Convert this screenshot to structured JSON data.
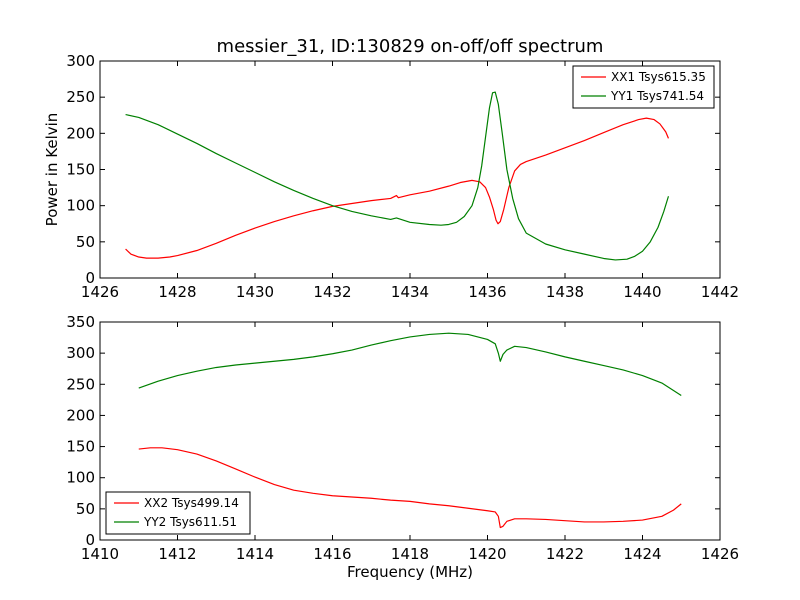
{
  "figure": {
    "title": "messier_31, ID:130829 on-off/off spectrum"
  },
  "chart_data": [
    {
      "type": "line",
      "title": "messier_31, ID:130829 on-off/off spectrum",
      "xlabel": "",
      "ylabel": "Power in Kelvin",
      "xlim": [
        1426,
        1442
      ],
      "ylim": [
        0,
        300
      ],
      "xticks": [
        "1426",
        "1428",
        "1430",
        "1432",
        "1434",
        "1436",
        "1438",
        "1440",
        "1442"
      ],
      "yticks": [
        "0",
        "50",
        "100",
        "150",
        "200",
        "250",
        "300"
      ],
      "legend_position": "top-right",
      "grid": false,
      "series": [
        {
          "name": "XX1 Tsys615.35",
          "color": "#ff0000",
          "points": [
            [
              1426.66,
              40
            ],
            [
              1426.8,
              33
            ],
            [
              1427.0,
              29
            ],
            [
              1427.2,
              27.5
            ],
            [
              1427.5,
              27.5
            ],
            [
              1427.8,
              29
            ],
            [
              1428.0,
              31
            ],
            [
              1428.5,
              38
            ],
            [
              1429.0,
              48
            ],
            [
              1429.5,
              59
            ],
            [
              1430.0,
              69
            ],
            [
              1430.5,
              78
            ],
            [
              1431.0,
              86
            ],
            [
              1431.5,
              93
            ],
            [
              1432.0,
              99
            ],
            [
              1432.5,
              103
            ],
            [
              1433.0,
              107
            ],
            [
              1433.5,
              110
            ],
            [
              1433.65,
              114
            ],
            [
              1433.7,
              111
            ],
            [
              1434.0,
              115
            ],
            [
              1434.5,
              120
            ],
            [
              1435.0,
              127
            ],
            [
              1435.3,
              132
            ],
            [
              1435.6,
              135
            ],
            [
              1435.8,
              133
            ],
            [
              1435.95,
              125
            ],
            [
              1436.05,
              112
            ],
            [
              1436.15,
              95
            ],
            [
              1436.22,
              80
            ],
            [
              1436.27,
              75
            ],
            [
              1436.33,
              78
            ],
            [
              1436.42,
              95
            ],
            [
              1436.55,
              125
            ],
            [
              1436.7,
              148
            ],
            [
              1436.85,
              157
            ],
            [
              1437.0,
              161
            ],
            [
              1437.5,
              170
            ],
            [
              1438.0,
              180
            ],
            [
              1438.5,
              190
            ],
            [
              1439.0,
              201
            ],
            [
              1439.5,
              212
            ],
            [
              1439.9,
              219
            ],
            [
              1440.1,
              221
            ],
            [
              1440.3,
              219
            ],
            [
              1440.45,
              213
            ],
            [
              1440.6,
              202
            ],
            [
              1440.67,
              193
            ]
          ]
        },
        {
          "name": "YY1 Tsys741.54",
          "color": "#008000",
          "points": [
            [
              1426.66,
              226
            ],
            [
              1427.0,
              222
            ],
            [
              1427.5,
              212
            ],
            [
              1428.0,
              199
            ],
            [
              1428.5,
              186
            ],
            [
              1429.0,
              172
            ],
            [
              1429.5,
              159
            ],
            [
              1430.0,
              146
            ],
            [
              1430.5,
              133
            ],
            [
              1431.0,
              121
            ],
            [
              1431.5,
              110
            ],
            [
              1432.0,
              100
            ],
            [
              1432.5,
              92
            ],
            [
              1433.0,
              86
            ],
            [
              1433.5,
              81
            ],
            [
              1433.65,
              83
            ],
            [
              1434.0,
              77
            ],
            [
              1434.5,
              74
            ],
            [
              1434.8,
              73
            ],
            [
              1435.0,
              74
            ],
            [
              1435.2,
              77
            ],
            [
              1435.4,
              85
            ],
            [
              1435.6,
              100
            ],
            [
              1435.75,
              125
            ],
            [
              1435.85,
              155
            ],
            [
              1435.95,
              195
            ],
            [
              1436.05,
              235
            ],
            [
              1436.13,
              256
            ],
            [
              1436.2,
              257
            ],
            [
              1436.28,
              240
            ],
            [
              1436.38,
              200
            ],
            [
              1436.5,
              150
            ],
            [
              1436.65,
              110
            ],
            [
              1436.8,
              82
            ],
            [
              1437.0,
              62
            ],
            [
              1437.5,
              47
            ],
            [
              1438.0,
              39
            ],
            [
              1438.5,
              33
            ],
            [
              1439.0,
              27
            ],
            [
              1439.3,
              25
            ],
            [
              1439.6,
              26
            ],
            [
              1439.8,
              30
            ],
            [
              1440.0,
              37
            ],
            [
              1440.2,
              50
            ],
            [
              1440.4,
              70
            ],
            [
              1440.55,
              92
            ],
            [
              1440.67,
              113
            ]
          ]
        }
      ]
    },
    {
      "type": "line",
      "title": "",
      "xlabel": "Frequency (MHz)",
      "ylabel": "",
      "xlim": [
        1410,
        1426
      ],
      "ylim": [
        0,
        350
      ],
      "xticks": [
        "1410",
        "1412",
        "1414",
        "1416",
        "1418",
        "1420",
        "1422",
        "1424",
        "1426"
      ],
      "yticks": [
        "0",
        "50",
        "100",
        "150",
        "200",
        "250",
        "300",
        "350"
      ],
      "legend_position": "bottom-left",
      "grid": false,
      "series": [
        {
          "name": "XX2 Tsys499.14",
          "color": "#ff0000",
          "points": [
            [
              1411.0,
              146
            ],
            [
              1411.3,
              148
            ],
            [
              1411.6,
              148
            ],
            [
              1412.0,
              145
            ],
            [
              1412.5,
              138
            ],
            [
              1413.0,
              127
            ],
            [
              1413.5,
              114
            ],
            [
              1414.0,
              101
            ],
            [
              1414.5,
              89
            ],
            [
              1415.0,
              80
            ],
            [
              1415.5,
              75
            ],
            [
              1416.0,
              71
            ],
            [
              1416.5,
              69
            ],
            [
              1417.0,
              67
            ],
            [
              1417.5,
              64
            ],
            [
              1418.0,
              62
            ],
            [
              1418.5,
              58
            ],
            [
              1419.0,
              55
            ],
            [
              1419.5,
              51
            ],
            [
              1420.0,
              47
            ],
            [
              1420.2,
              45
            ],
            [
              1420.28,
              38
            ],
            [
              1420.33,
              20
            ],
            [
              1420.4,
              22
            ],
            [
              1420.5,
              30
            ],
            [
              1420.7,
              34
            ],
            [
              1421.0,
              34
            ],
            [
              1421.5,
              33
            ],
            [
              1422.0,
              31
            ],
            [
              1422.5,
              29
            ],
            [
              1423.0,
              29
            ],
            [
              1423.5,
              30
            ],
            [
              1424.0,
              32
            ],
            [
              1424.5,
              38
            ],
            [
              1424.8,
              48
            ],
            [
              1425.0,
              58
            ]
          ]
        },
        {
          "name": "YY2 Tsys611.51",
          "color": "#008000",
          "points": [
            [
              1411.0,
              244
            ],
            [
              1411.5,
              255
            ],
            [
              1412.0,
              264
            ],
            [
              1412.5,
              271
            ],
            [
              1413.0,
              277
            ],
            [
              1413.5,
              281
            ],
            [
              1414.0,
              284
            ],
            [
              1414.5,
              287
            ],
            [
              1415.0,
              290
            ],
            [
              1415.5,
              294
            ],
            [
              1416.0,
              299
            ],
            [
              1416.5,
              305
            ],
            [
              1417.0,
              313
            ],
            [
              1417.5,
              320
            ],
            [
              1418.0,
              326
            ],
            [
              1418.5,
              330
            ],
            [
              1419.0,
              332
            ],
            [
              1419.5,
              330
            ],
            [
              1420.0,
              322
            ],
            [
              1420.2,
              315
            ],
            [
              1420.28,
              300
            ],
            [
              1420.33,
              287
            ],
            [
              1420.4,
              298
            ],
            [
              1420.5,
              305
            ],
            [
              1420.7,
              311
            ],
            [
              1421.0,
              309
            ],
            [
              1421.5,
              302
            ],
            [
              1422.0,
              294
            ],
            [
              1422.5,
              287
            ],
            [
              1423.0,
              280
            ],
            [
              1423.5,
              273
            ],
            [
              1424.0,
              264
            ],
            [
              1424.5,
              252
            ],
            [
              1425.0,
              232
            ]
          ]
        }
      ]
    }
  ]
}
